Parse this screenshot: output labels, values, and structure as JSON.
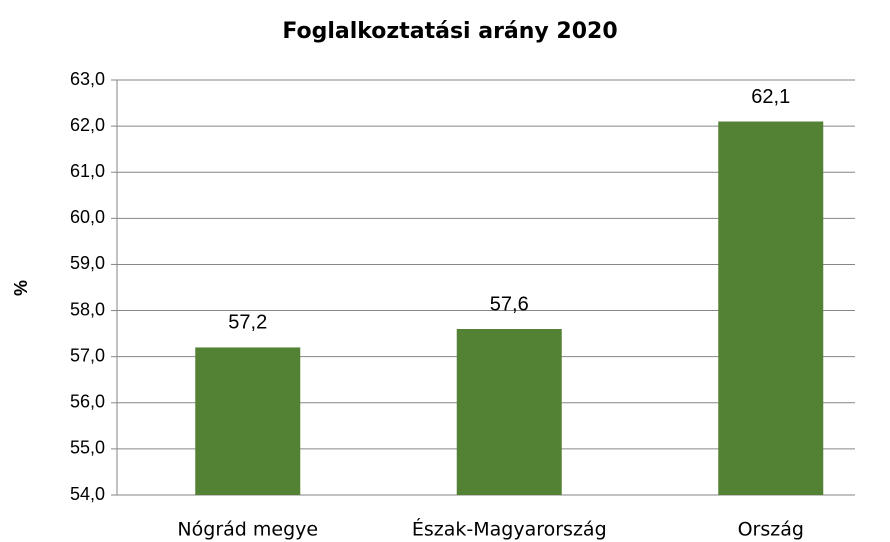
{
  "chart_data": {
    "type": "bar",
    "title": "Foglalkoztatási arány 2020",
    "y_label": "%",
    "categories": [
      "Nógrád megye",
      "Észak-Magyarország",
      "Ország"
    ],
    "values": [
      57.2,
      57.6,
      62.1
    ],
    "value_labels": [
      "57,2",
      "57,6",
      "62,1"
    ],
    "color": "#548235",
    "ylim": [
      54,
      63
    ],
    "yticks": [
      {
        "value": 54,
        "label": "54,0"
      },
      {
        "value": 55,
        "label": "55,0"
      },
      {
        "value": 56,
        "label": "56,0"
      },
      {
        "value": 57,
        "label": "57,0"
      },
      {
        "value": 58,
        "label": "58,0"
      },
      {
        "value": 59,
        "label": "59,0"
      },
      {
        "value": 60,
        "label": "60,0"
      },
      {
        "value": 61,
        "label": "61,0"
      },
      {
        "value": 62,
        "label": "62,0"
      },
      {
        "value": 63,
        "label": "63,0"
      }
    ],
    "grid": true
  }
}
